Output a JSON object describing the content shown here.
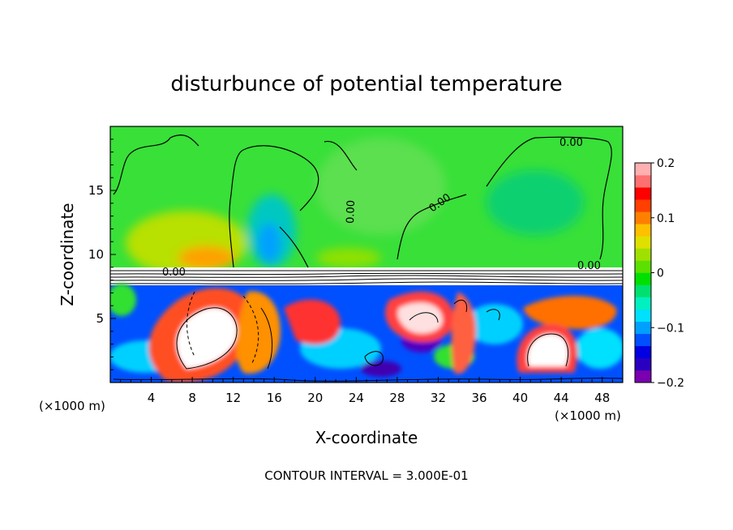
{
  "chart_data": {
    "type": "heatmap",
    "title": "disturbunce of potential temperature",
    "xlabel": "X-coordinate",
    "ylabel": "Z-coordinate",
    "x_unit": "(×1000 m)",
    "x_ticks": [
      "4",
      "8",
      "12",
      "16",
      "20",
      "24",
      "28",
      "32",
      "36",
      "40",
      "44",
      "48"
    ],
    "y_ticks": [
      "5",
      "10",
      "15"
    ],
    "xlim": [
      0,
      50
    ],
    "ylim": [
      0,
      20
    ],
    "colorbar": {
      "range": [
        -0.2,
        0.2
      ],
      "tick_labels": [
        "0.2",
        "0.1",
        "0",
        "−0.1",
        "−0.2"
      ],
      "tick_values": [
        0.2,
        0.1,
        0,
        -0.1,
        -0.2
      ],
      "colors": [
        "#7a00b0",
        "#2a00c0",
        "#0000e0",
        "#0050ff",
        "#00a0ff",
        "#00e0ff",
        "#00f0c0",
        "#00e070",
        "#00e000",
        "#5be000",
        "#a0e000",
        "#e0e000",
        "#ffc000",
        "#ff8000",
        "#ff4000",
        "#ff0000",
        "#ff7070",
        "#ffb0b0"
      ]
    },
    "contour_labels": [
      "0.00",
      "0.00",
      "0.00",
      "0.00",
      "0.00"
    ],
    "grid": false,
    "legend": "colorbar-right"
  },
  "footer": {
    "contour_interval": "CONTOUR INTERVAL = 3.000E-01"
  }
}
